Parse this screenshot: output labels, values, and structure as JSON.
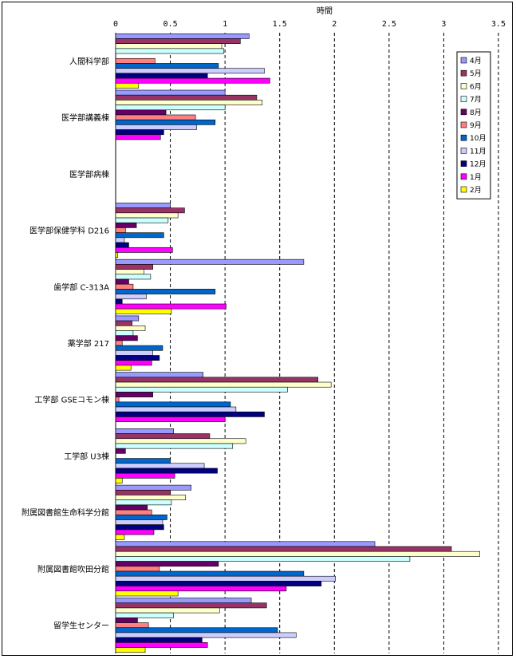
{
  "chart_data": {
    "type": "bar",
    "orientation": "horizontal",
    "x_title": "時間",
    "xlim": [
      0,
      3.5
    ],
    "xticks": [
      0,
      0.5,
      1,
      1.5,
      2,
      2.5,
      3,
      3.5
    ],
    "xtick_labels": [
      "0",
      "0.5",
      "1",
      "1.5",
      "2",
      "2.5",
      "3",
      "3.5"
    ],
    "grid": "dashed vertical",
    "legend_position": "right",
    "categories": [
      "人間科学部",
      "医学部講義棟",
      "医学部病棟",
      "医学部保健学科 D216",
      "歯学部 C-313A",
      "薬学部 217",
      "工学部 GSEコモン棟",
      "工学部 U3棟",
      "附属図書館生命科学分館",
      "附属図書館吹田分館",
      "留学生センター"
    ],
    "series": [
      {
        "name": "4月",
        "color": "#9999ff",
        "values": [
          1.22,
          1.0,
          0,
          0.5,
          1.72,
          0.21,
          0.8,
          0.53,
          0.69,
          2.37,
          1.24
        ]
      },
      {
        "name": "5月",
        "color": "#993366",
        "values": [
          1.14,
          1.29,
          0,
          0.63,
          0.34,
          0.15,
          1.85,
          0.86,
          0.5,
          3.07,
          1.38
        ]
      },
      {
        "name": "6月",
        "color": "#ffffcc",
        "values": [
          0.97,
          1.34,
          0,
          0.57,
          0.26,
          0.27,
          1.97,
          1.19,
          0.64,
          3.33,
          0.95
        ]
      },
      {
        "name": "7月",
        "color": "#ccffff",
        "values": [
          0.99,
          1.0,
          0,
          0.48,
          0.32,
          0.16,
          1.57,
          1.07,
          0.51,
          2.69,
          0.53
        ]
      },
      {
        "name": "8月",
        "color": "#660066",
        "values": [
          0.0,
          0.46,
          0,
          0.19,
          0.12,
          0.2,
          0.34,
          0.09,
          0.29,
          0.94,
          0.2
        ]
      },
      {
        "name": "9月",
        "color": "#ff8080",
        "values": [
          0.36,
          0.73,
          0,
          0.09,
          0.16,
          0.06,
          0.03,
          0.0,
          0.33,
          0.4,
          0.3
        ]
      },
      {
        "name": "10月",
        "color": "#0066cc",
        "values": [
          0.94,
          0.91,
          0,
          0.44,
          0.91,
          0.43,
          1.05,
          0.5,
          0.47,
          1.72,
          1.48
        ]
      },
      {
        "name": "11月",
        "color": "#ccccff",
        "values": [
          1.36,
          0.74,
          0,
          0.08,
          0.28,
          0.34,
          1.1,
          0.81,
          0.43,
          2.01,
          1.65
        ]
      },
      {
        "name": "12月",
        "color": "#000080",
        "values": [
          0.84,
          0.44,
          0,
          0.12,
          0.06,
          0.4,
          1.36,
          0.93,
          0.44,
          1.88,
          0.79
        ]
      },
      {
        "name": "1月",
        "color": "#ff00ff",
        "values": [
          1.41,
          0.41,
          0,
          0.52,
          1.01,
          0.33,
          1.0,
          0.54,
          0.35,
          1.56,
          0.84
        ]
      },
      {
        "name": "2月",
        "color": "#ffff00",
        "values": [
          0.21,
          0.0,
          0,
          0.02,
          0.51,
          0.14,
          0.0,
          0.06,
          0.08,
          0.57,
          0.27
        ]
      }
    ]
  }
}
